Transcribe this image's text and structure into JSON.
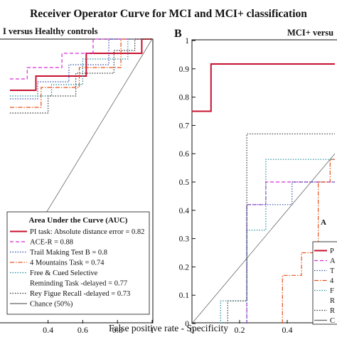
{
  "figure": {
    "title": "Receiver Operator Curve for MCI and MCI+ classification",
    "xlabel": "False positive rate - Specificity"
  },
  "chart_data": [
    {
      "type": "line",
      "panel_label": "",
      "subtitle": "I versus Healthy controls",
      "xlabel": "False positive rate - Specificity",
      "ylabel": "",
      "xlim": [
        0,
        1
      ],
      "ylim": [
        0,
        1
      ],
      "x_ticks": [
        "0.4",
        "0.6",
        "0.8",
        "1"
      ],
      "grid": false,
      "legend_title": "Area Under the Curve (AUC)",
      "legend_position": "bottom-right",
      "legend": [
        {
          "label": "PI task: Absolute distance error = 0.82",
          "color": "#c8102e",
          "dash": "solid"
        },
        {
          "label": "ACE-R = 0.88",
          "color": "#d62ad6",
          "dash": "dashed"
        },
        {
          "label": "Trail Making Test B = 0.8",
          "color": "#2c4ea8",
          "dash": "dotted"
        },
        {
          "label": "4 Mountains Task = 0.74",
          "color": "#e8501a",
          "dash": "dashdot"
        },
        {
          "label": "Free & Cued Selective",
          "color": "#1a8a9a",
          "dash": "dotted"
        },
        {
          "label": "Reminding Task -delayed = 0.77",
          "color": "",
          "dash": ""
        },
        {
          "label": "Rey Figue Recall -delayed = 0.73",
          "color": "#333333",
          "dash": "dotted"
        },
        {
          "label": "Chance (50%)",
          "color": "#666666",
          "dash": "solid"
        }
      ],
      "series": [
        {
          "name": "PI task: Absolute distance error",
          "color": "#c8102e",
          "dash": "solid",
          "width": 2,
          "points": [
            [
              0.18,
              0.82
            ],
            [
              0.33,
              0.82
            ],
            [
              0.33,
              0.87
            ],
            [
              0.62,
              0.87
            ],
            [
              0.62,
              0.95
            ],
            [
              0.94,
              0.95
            ],
            [
              0.94,
              1
            ],
            [
              1,
              1
            ]
          ]
        },
        {
          "name": "ACE-R",
          "color": "#d62ad6",
          "dash": "dashed",
          "width": 1.2,
          "points": [
            [
              0.18,
              0.86
            ],
            [
              0.28,
              0.86
            ],
            [
              0.28,
              0.9
            ],
            [
              0.48,
              0.9
            ],
            [
              0.48,
              0.95
            ],
            [
              0.66,
              0.95
            ],
            [
              0.66,
              1
            ],
            [
              1,
              1
            ]
          ]
        },
        {
          "name": "Trail Making Test B",
          "color": "#2c4ea8",
          "dash": "dotted",
          "width": 1.2,
          "points": [
            [
              0.18,
              0.79
            ],
            [
              0.34,
              0.79
            ],
            [
              0.34,
              0.85
            ],
            [
              0.52,
              0.85
            ],
            [
              0.52,
              0.91
            ],
            [
              0.75,
              0.91
            ],
            [
              0.75,
              1
            ],
            [
              1,
              1
            ]
          ]
        },
        {
          "name": "4 Mountains Task",
          "color": "#e8501a",
          "dash": "dashdot",
          "width": 1.2,
          "points": [
            [
              0.18,
              0.76
            ],
            [
              0.36,
              0.76
            ],
            [
              0.36,
              0.83
            ],
            [
              0.58,
              0.83
            ],
            [
              0.58,
              0.9
            ],
            [
              0.82,
              0.9
            ],
            [
              0.82,
              1
            ],
            [
              1,
              1
            ]
          ]
        },
        {
          "name": "Free & Cued Selective Reminding Task -delayed",
          "color": "#1a8a9a",
          "dash": "dotted",
          "width": 1.2,
          "points": [
            [
              0.18,
              0.8
            ],
            [
              0.42,
              0.8
            ],
            [
              0.42,
              0.84
            ],
            [
              0.6,
              0.84
            ],
            [
              0.6,
              0.93
            ],
            [
              0.86,
              0.93
            ],
            [
              0.86,
              1
            ],
            [
              1,
              1
            ]
          ]
        },
        {
          "name": "Rey Figue Recall -delayed",
          "color": "#333333",
          "dash": "dotted",
          "width": 1.2,
          "points": [
            [
              0.18,
              0.74
            ],
            [
              0.4,
              0.74
            ],
            [
              0.4,
              0.8
            ],
            [
              0.56,
              0.8
            ],
            [
              0.56,
              0.88
            ],
            [
              0.78,
              0.88
            ],
            [
              0.78,
              0.96
            ],
            [
              0.9,
              0.96
            ],
            [
              0.9,
              1
            ],
            [
              1,
              1
            ]
          ]
        },
        {
          "name": "Chance (50%)",
          "color": "#666666",
          "dash": "solid",
          "width": 0.8,
          "points": [
            [
              0.18,
              0.18
            ],
            [
              1,
              1
            ]
          ]
        }
      ]
    },
    {
      "type": "line",
      "panel_label": "B",
      "subtitle": "MCI+ versu",
      "xlabel": "",
      "ylabel": "",
      "xlim": [
        0,
        1
      ],
      "ylim": [
        0,
        1
      ],
      "x_ticks": [
        "0",
        "0.2",
        "0.4"
      ],
      "y_ticks": [
        "0",
        "0.1",
        "0.2",
        "0.3",
        "0.4",
        "0.5",
        "0.6",
        "0.7",
        "0.8",
        "0.9",
        "1"
      ],
      "grid": false,
      "legend_position": "bottom-right",
      "legend": [
        {
          "label": "P",
          "color": "#c8102e",
          "dash": "solid"
        },
        {
          "label": "A",
          "color": "#d62ad6",
          "dash": "dashed"
        },
        {
          "label": "T",
          "color": "#2c4ea8",
          "dash": "dotted"
        },
        {
          "label": "4",
          "color": "#e8501a",
          "dash": "dashdot"
        },
        {
          "label": "F",
          "color": "#1a8a9a",
          "dash": "dotted"
        },
        {
          "label": "R",
          "color": "",
          "dash": ""
        },
        {
          "label": "R",
          "color": "#333333",
          "dash": "dotted"
        },
        {
          "label": "C",
          "color": "#666666",
          "dash": "solid"
        }
      ],
      "series": [
        {
          "name": "PI task",
          "color": "#c8102e",
          "dash": "solid",
          "width": 2,
          "points": [
            [
              0,
              0.75
            ],
            [
              0.08,
              0.75
            ],
            [
              0.08,
              0.917
            ],
            [
              0.6,
              0.917
            ]
          ]
        },
        {
          "name": "ACE-R",
          "color": "#d62ad6",
          "dash": "dashed",
          "width": 1.2,
          "points": [
            [
              0.23,
              0
            ],
            [
              0.23,
              0.42
            ],
            [
              0.31,
              0.42
            ],
            [
              0.31,
              0.5
            ],
            [
              0.6,
              0.5
            ]
          ]
        },
        {
          "name": "Trail Making Test B",
          "color": "#2c4ea8",
          "dash": "dotted",
          "width": 1.2,
          "points": [
            [
              0.23,
              0
            ],
            [
              0.23,
              0.42
            ],
            [
              0.42,
              0.42
            ],
            [
              0.42,
              0.5
            ],
            [
              0.6,
              0.5
            ]
          ]
        },
        {
          "name": "4 Mountains Task",
          "color": "#e8501a",
          "dash": "dashdot",
          "width": 1.2,
          "points": [
            [
              0.38,
              0
            ],
            [
              0.38,
              0.17
            ],
            [
              0.46,
              0.17
            ],
            [
              0.46,
              0.25
            ],
            [
              0.53,
              0.25
            ],
            [
              0.53,
              0.5
            ],
            [
              0.58,
              0.5
            ],
            [
              0.58,
              0.58
            ],
            [
              0.6,
              0.58
            ]
          ]
        },
        {
          "name": "Free & Cued Selective Reminding Task -delayed",
          "color": "#1a8a9a",
          "dash": "dotted",
          "width": 1.2,
          "points": [
            [
              0.12,
              0
            ],
            [
              0.12,
              0.08
            ],
            [
              0.23,
              0.08
            ],
            [
              0.23,
              0.33
            ],
            [
              0.31,
              0.33
            ],
            [
              0.31,
              0.58
            ],
            [
              0.6,
              0.58
            ]
          ]
        },
        {
          "name": "Rey Figue Recall -delayed",
          "color": "#333333",
          "dash": "dotted",
          "width": 1.2,
          "points": [
            [
              0.15,
              0
            ],
            [
              0.15,
              0.08
            ],
            [
              0.23,
              0.08
            ],
            [
              0.23,
              0.67
            ],
            [
              0.6,
              0.67
            ]
          ]
        },
        {
          "name": "Chance (50%)",
          "color": "#666666",
          "dash": "solid",
          "width": 0.8,
          "points": [
            [
              0,
              0
            ],
            [
              0.6,
              0.6
            ]
          ]
        }
      ]
    }
  ]
}
